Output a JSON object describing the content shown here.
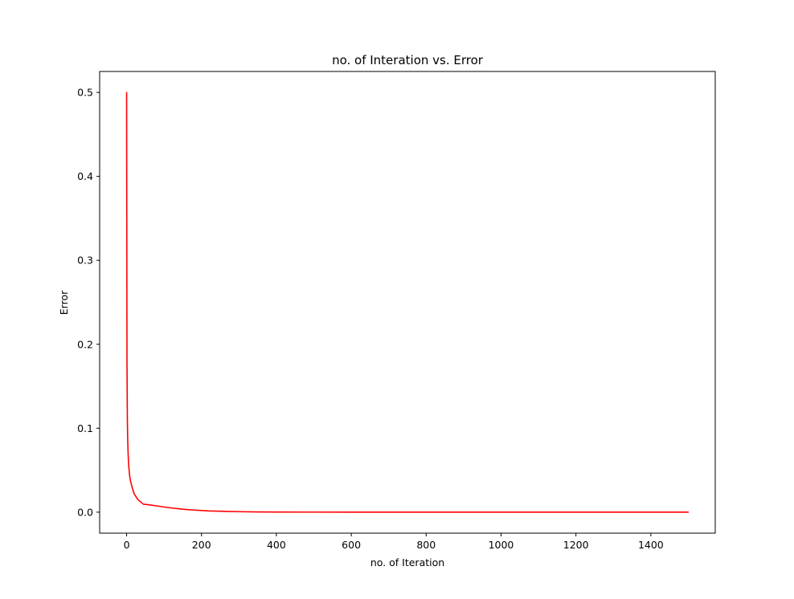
{
  "chart_data": {
    "type": "line",
    "title": "no. of Interation vs. Error",
    "xlabel": "no. of Iteration",
    "ylabel": "Error",
    "xlim": [
      -72,
      1572
    ],
    "ylim": [
      -0.025,
      0.525
    ],
    "x_ticks": [
      0,
      200,
      400,
      600,
      800,
      1000,
      1200,
      1400
    ],
    "x_tick_labels": [
      "0",
      "200",
      "400",
      "600",
      "800",
      "1000",
      "1200",
      "1400"
    ],
    "y_ticks": [
      0.0,
      0.1,
      0.2,
      0.3,
      0.4,
      0.5
    ],
    "y_tick_labels": [
      "0.0",
      "0.1",
      "0.2",
      "0.3",
      "0.4",
      "0.5"
    ],
    "grid": false,
    "legend": "none",
    "series": [
      {
        "color": "#ff0000",
        "x": [
          0,
          1,
          2,
          3,
          4,
          5,
          6,
          8,
          10,
          15,
          20,
          30,
          45,
          60,
          80,
          100,
          120,
          150,
          180,
          220,
          260,
          300,
          350,
          400,
          500,
          600,
          800,
          1000,
          1200,
          1500
        ],
        "y": [
          0.5,
          0.18,
          0.11,
          0.085,
          0.07,
          0.06,
          0.053,
          0.044,
          0.038,
          0.029,
          0.022,
          0.015,
          0.0095,
          0.0088,
          0.0075,
          0.0062,
          0.005,
          0.0035,
          0.0025,
          0.0015,
          0.001,
          0.0006,
          0.0003,
          0.0002,
          0.0001,
          5e-05,
          0.0,
          0.0,
          0.0,
          0.0
        ]
      }
    ]
  }
}
